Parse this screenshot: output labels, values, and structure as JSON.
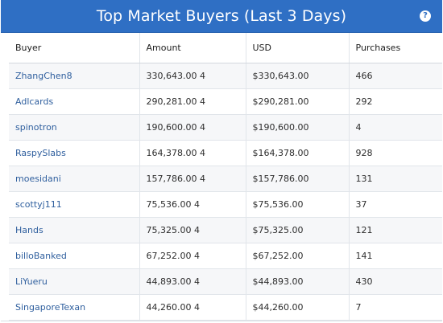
{
  "header": {
    "title": "Top Market Buyers (Last 3 Days)",
    "help_icon": "question-circle-icon",
    "accent_color": "#2f6fc4"
  },
  "table": {
    "columns": [
      "Buyer",
      "Amount",
      "USD",
      "Purchases"
    ],
    "rows": [
      {
        "buyer": "ZhangChen8",
        "amount": "330,643.00 4",
        "usd": "$330,643.00",
        "purchases": "466"
      },
      {
        "buyer": "Adlcards",
        "amount": "290,281.00 4",
        "usd": "$290,281.00",
        "purchases": "292"
      },
      {
        "buyer": "spinotron",
        "amount": "190,600.00 4",
        "usd": "$190,600.00",
        "purchases": "4"
      },
      {
        "buyer": "RaspySlabs",
        "amount": "164,378.00 4",
        "usd": "$164,378.00",
        "purchases": "928"
      },
      {
        "buyer": "moesidani",
        "amount": "157,786.00 4",
        "usd": "$157,786.00",
        "purchases": "131"
      },
      {
        "buyer": "scottyj111",
        "amount": "75,536.00 4",
        "usd": "$75,536.00",
        "purchases": "37"
      },
      {
        "buyer": "Hands",
        "amount": "75,325.00 4",
        "usd": "$75,325.00",
        "purchases": "121"
      },
      {
        "buyer": "billoBanked",
        "amount": "67,252.00 4",
        "usd": "$67,252.00",
        "purchases": "141"
      },
      {
        "buyer": "LiYueru",
        "amount": "44,893.00 4",
        "usd": "$44,893.00",
        "purchases": "430"
      },
      {
        "buyer": "SingaporeTexan",
        "amount": "44,260.00 4",
        "usd": "$44,260.00",
        "purchases": "7"
      }
    ]
  }
}
